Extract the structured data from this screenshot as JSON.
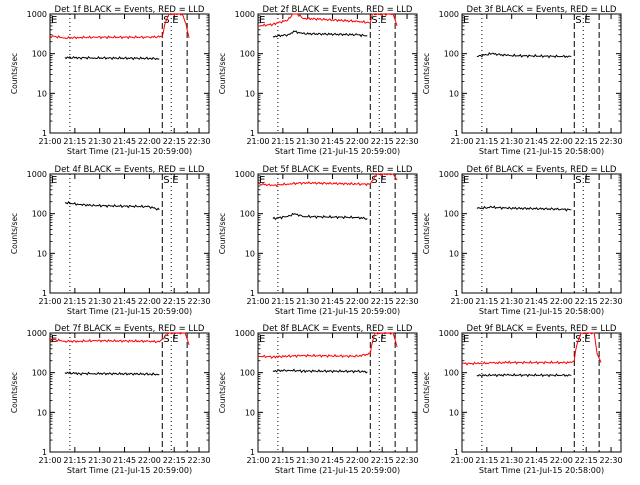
{
  "chart_data": [
    {
      "type": "line",
      "title": "Det 1f BLACK = Events, RED = LLD",
      "xlabel": "Start Time (21-Jul-15 20:59:00)",
      "ylabel": "Counts/sec",
      "yscale": "log",
      "ylim": [
        1,
        1000
      ],
      "xticks": [
        "21:00",
        "21:15",
        "21:30",
        "21:45",
        "22:00",
        "22:15",
        "22:30"
      ],
      "yticks": [
        "1",
        "10",
        "100",
        "1000"
      ],
      "markers": {
        "e_left": "E",
        "s": "S",
        "e": "E"
      },
      "series": [
        {
          "color": "#000000",
          "x": [
            21.15,
            21.3,
            21.45,
            22.0,
            22.1
          ],
          "y": [
            80,
            79,
            78,
            76,
            74
          ]
        },
        {
          "color": "#ff0000",
          "x": [
            21.0,
            21.15,
            21.3,
            21.45,
            22.0,
            22.13,
            22.2,
            22.33,
            22.38,
            22.4
          ],
          "y": [
            280,
            250,
            255,
            260,
            260,
            270,
            1000,
            1000,
            400,
            250
          ]
        }
      ]
    },
    {
      "type": "line",
      "title": "Det 2f BLACK = Events, RED = LLD",
      "xlabel": "Start Time (21-Jul-15 20:59:00)",
      "ylabel": "Counts/sec",
      "yscale": "log",
      "ylim": [
        1,
        1000
      ],
      "xticks": [
        "21:00",
        "21:15",
        "21:30",
        "21:45",
        "22:00",
        "22:15",
        "22:30"
      ],
      "yticks": [
        "1",
        "10",
        "100",
        "1000"
      ],
      "markers": {
        "e_left": "E",
        "s": "S",
        "e": "E"
      },
      "series": [
        {
          "color": "#000000",
          "x": [
            21.15,
            21.3,
            21.37,
            21.45,
            22.0,
            22.1
          ],
          "y": [
            270,
            300,
            360,
            320,
            300,
            280
          ]
        },
        {
          "color": "#ff0000",
          "x": [
            21.0,
            21.15,
            21.3,
            21.37,
            21.45,
            22.0,
            22.13,
            22.15,
            22.25,
            22.36,
            22.4
          ],
          "y": [
            500,
            550,
            700,
            1100,
            780,
            650,
            600,
            1000,
            1000,
            1000,
            500
          ]
        }
      ]
    },
    {
      "type": "line",
      "title": "Det 3f BLACK = Events, RED = LLD",
      "xlabel": "Start Time (21-Jul-15 20:58:00)",
      "ylabel": "Counts/sec",
      "yscale": "log",
      "ylim": [
        1,
        1000
      ],
      "xticks": [
        "21:00",
        "21:15",
        "21:30",
        "21:45",
        "22:00",
        "22:15",
        "22:30"
      ],
      "yticks": [
        "1",
        "10",
        "100",
        "1000"
      ],
      "markers": {
        "e_left": "E",
        "s": "S",
        "e": "E"
      },
      "series": [
        {
          "color": "#000000",
          "x": [
            21.15,
            21.3,
            21.45,
            22.0,
            22.1
          ],
          "y": [
            85,
            100,
            90,
            85,
            84
          ]
        }
      ]
    },
    {
      "type": "line",
      "title": "Det 4f BLACK = Events, RED = LLD",
      "xlabel": "Start Time (21-Jul-15 20:59:00)",
      "ylabel": "Counts/sec",
      "yscale": "log",
      "ylim": [
        1,
        1000
      ],
      "xticks": [
        "21:00",
        "21:15",
        "21:30",
        "21:45",
        "22:00",
        "22:15",
        "22:30"
      ],
      "yticks": [
        "1",
        "10",
        "100",
        "1000"
      ],
      "markers": {
        "e_left": "E",
        "s": "S",
        "e": "E"
      },
      "series": [
        {
          "color": "#000000",
          "x": [
            21.15,
            21.3,
            21.45,
            22.0,
            22.1
          ],
          "y": [
            190,
            170,
            160,
            150,
            125
          ]
        }
      ]
    },
    {
      "type": "line",
      "title": "Det 5f BLACK = Events, RED = LLD",
      "xlabel": "Start Time (21-Jul-15 20:59:00)",
      "ylabel": "Counts/sec",
      "yscale": "log",
      "ylim": [
        1,
        1000
      ],
      "xticks": [
        "21:00",
        "21:15",
        "21:30",
        "21:45",
        "22:00",
        "22:15",
        "22:30"
      ],
      "yticks": [
        "1",
        "10",
        "100",
        "1000"
      ],
      "markers": {
        "e_left": "E",
        "s": "S",
        "e": "E"
      },
      "series": [
        {
          "color": "#000000",
          "x": [
            21.15,
            21.3,
            21.37,
            21.45,
            22.0,
            22.1
          ],
          "y": [
            75,
            85,
            100,
            85,
            80,
            75
          ]
        },
        {
          "color": "#ff0000",
          "x": [
            21.0,
            21.15,
            21.3,
            21.45,
            22.0,
            22.13,
            22.2,
            22.36,
            22.4
          ],
          "y": [
            560,
            520,
            560,
            600,
            560,
            550,
            1000,
            1000,
            700
          ]
        }
      ]
    },
    {
      "type": "line",
      "title": "Det 6f BLACK = Events, RED = LLD",
      "xlabel": "Start Time (21-Jul-15 20:58:00)",
      "ylabel": "Counts/sec",
      "yscale": "log",
      "ylim": [
        1,
        1000
      ],
      "xticks": [
        "21:00",
        "21:15",
        "21:30",
        "21:45",
        "22:00",
        "22:15",
        "22:30"
      ],
      "yticks": [
        "1",
        "10",
        "100",
        "1000"
      ],
      "markers": {
        "e_left": "E",
        "s": "S",
        "e": "E"
      },
      "series": [
        {
          "color": "#000000",
          "x": [
            21.15,
            21.3,
            21.45,
            22.0,
            22.1
          ],
          "y": [
            135,
            145,
            138,
            130,
            125
          ]
        }
      ]
    },
    {
      "type": "line",
      "title": "Det 7f BLACK = Events, RED = LLD",
      "xlabel": "Start Time (21-Jul-15 20:59:00)",
      "ylabel": "Counts/sec",
      "yscale": "log",
      "ylim": [
        1,
        1000
      ],
      "xticks": [
        "21:00",
        "21:15",
        "21:30",
        "21:45",
        "22:00",
        "22:15",
        "22:30"
      ],
      "yticks": [
        "1",
        "10",
        "100",
        "1000"
      ],
      "markers": {
        "e_left": "E",
        "s": "S",
        "e": "E"
      },
      "series": [
        {
          "color": "#000000",
          "x": [
            21.15,
            21.3,
            21.45,
            22.0,
            22.1
          ],
          "y": [
            100,
            95,
            95,
            92,
            90
          ]
        },
        {
          "color": "#ff0000",
          "x": [
            21.0,
            21.15,
            21.3,
            21.45,
            22.0,
            22.1,
            22.13,
            22.2,
            22.36,
            22.4
          ],
          "y": [
            700,
            620,
            620,
            640,
            620,
            600,
            700,
            1000,
            1000,
            500
          ]
        }
      ]
    },
    {
      "type": "line",
      "title": "Det 8f BLACK = Events, RED = LLD",
      "xlabel": "Start Time (21-Jul-15 20:59:00)",
      "ylabel": "Counts/sec",
      "yscale": "log",
      "ylim": [
        1,
        1000
      ],
      "xticks": [
        "21:00",
        "21:15",
        "21:30",
        "21:45",
        "22:00",
        "22:15",
        "22:30"
      ],
      "yticks": [
        "1",
        "10",
        "100",
        "1000"
      ],
      "markers": {
        "e_left": "E",
        "s": "S",
        "e": "E"
      },
      "series": [
        {
          "color": "#000000",
          "x": [
            21.15,
            21.3,
            21.45,
            22.0,
            22.1
          ],
          "y": [
            110,
            115,
            110,
            108,
            105
          ]
        },
        {
          "color": "#ff0000",
          "x": [
            21.0,
            21.15,
            21.3,
            21.45,
            22.0,
            22.13,
            22.18,
            22.25,
            22.36,
            22.4
          ],
          "y": [
            260,
            250,
            260,
            270,
            260,
            300,
            1000,
            1000,
            1000,
            450
          ]
        }
      ]
    },
    {
      "type": "line",
      "title": "Det 9f BLACK = Events, RED = LLD",
      "xlabel": "Start Time (21-Jul-15 20:58:00)",
      "ylabel": "Counts/sec",
      "yscale": "log",
      "ylim": [
        1,
        1000
      ],
      "xticks": [
        "21:00",
        "21:15",
        "21:30",
        "21:45",
        "22:00",
        "22:15",
        "22:30"
      ],
      "yticks": [
        "1",
        "10",
        "100",
        "1000"
      ],
      "markers": {
        "e_left": "E",
        "s": "S",
        "e": "E"
      },
      "series": [
        {
          "color": "#000000",
          "x": [
            21.15,
            21.3,
            21.45,
            22.0,
            22.1
          ],
          "y": [
            85,
            86,
            87,
            86,
            85
          ]
        },
        {
          "color": "#ff0000",
          "x": [
            21.0,
            21.15,
            21.3,
            21.45,
            22.0,
            22.1,
            22.13,
            22.2,
            22.33,
            22.36,
            22.4
          ],
          "y": [
            170,
            170,
            175,
            180,
            180,
            180,
            200,
            1000,
            1000,
            300,
            180
          ]
        }
      ]
    }
  ]
}
